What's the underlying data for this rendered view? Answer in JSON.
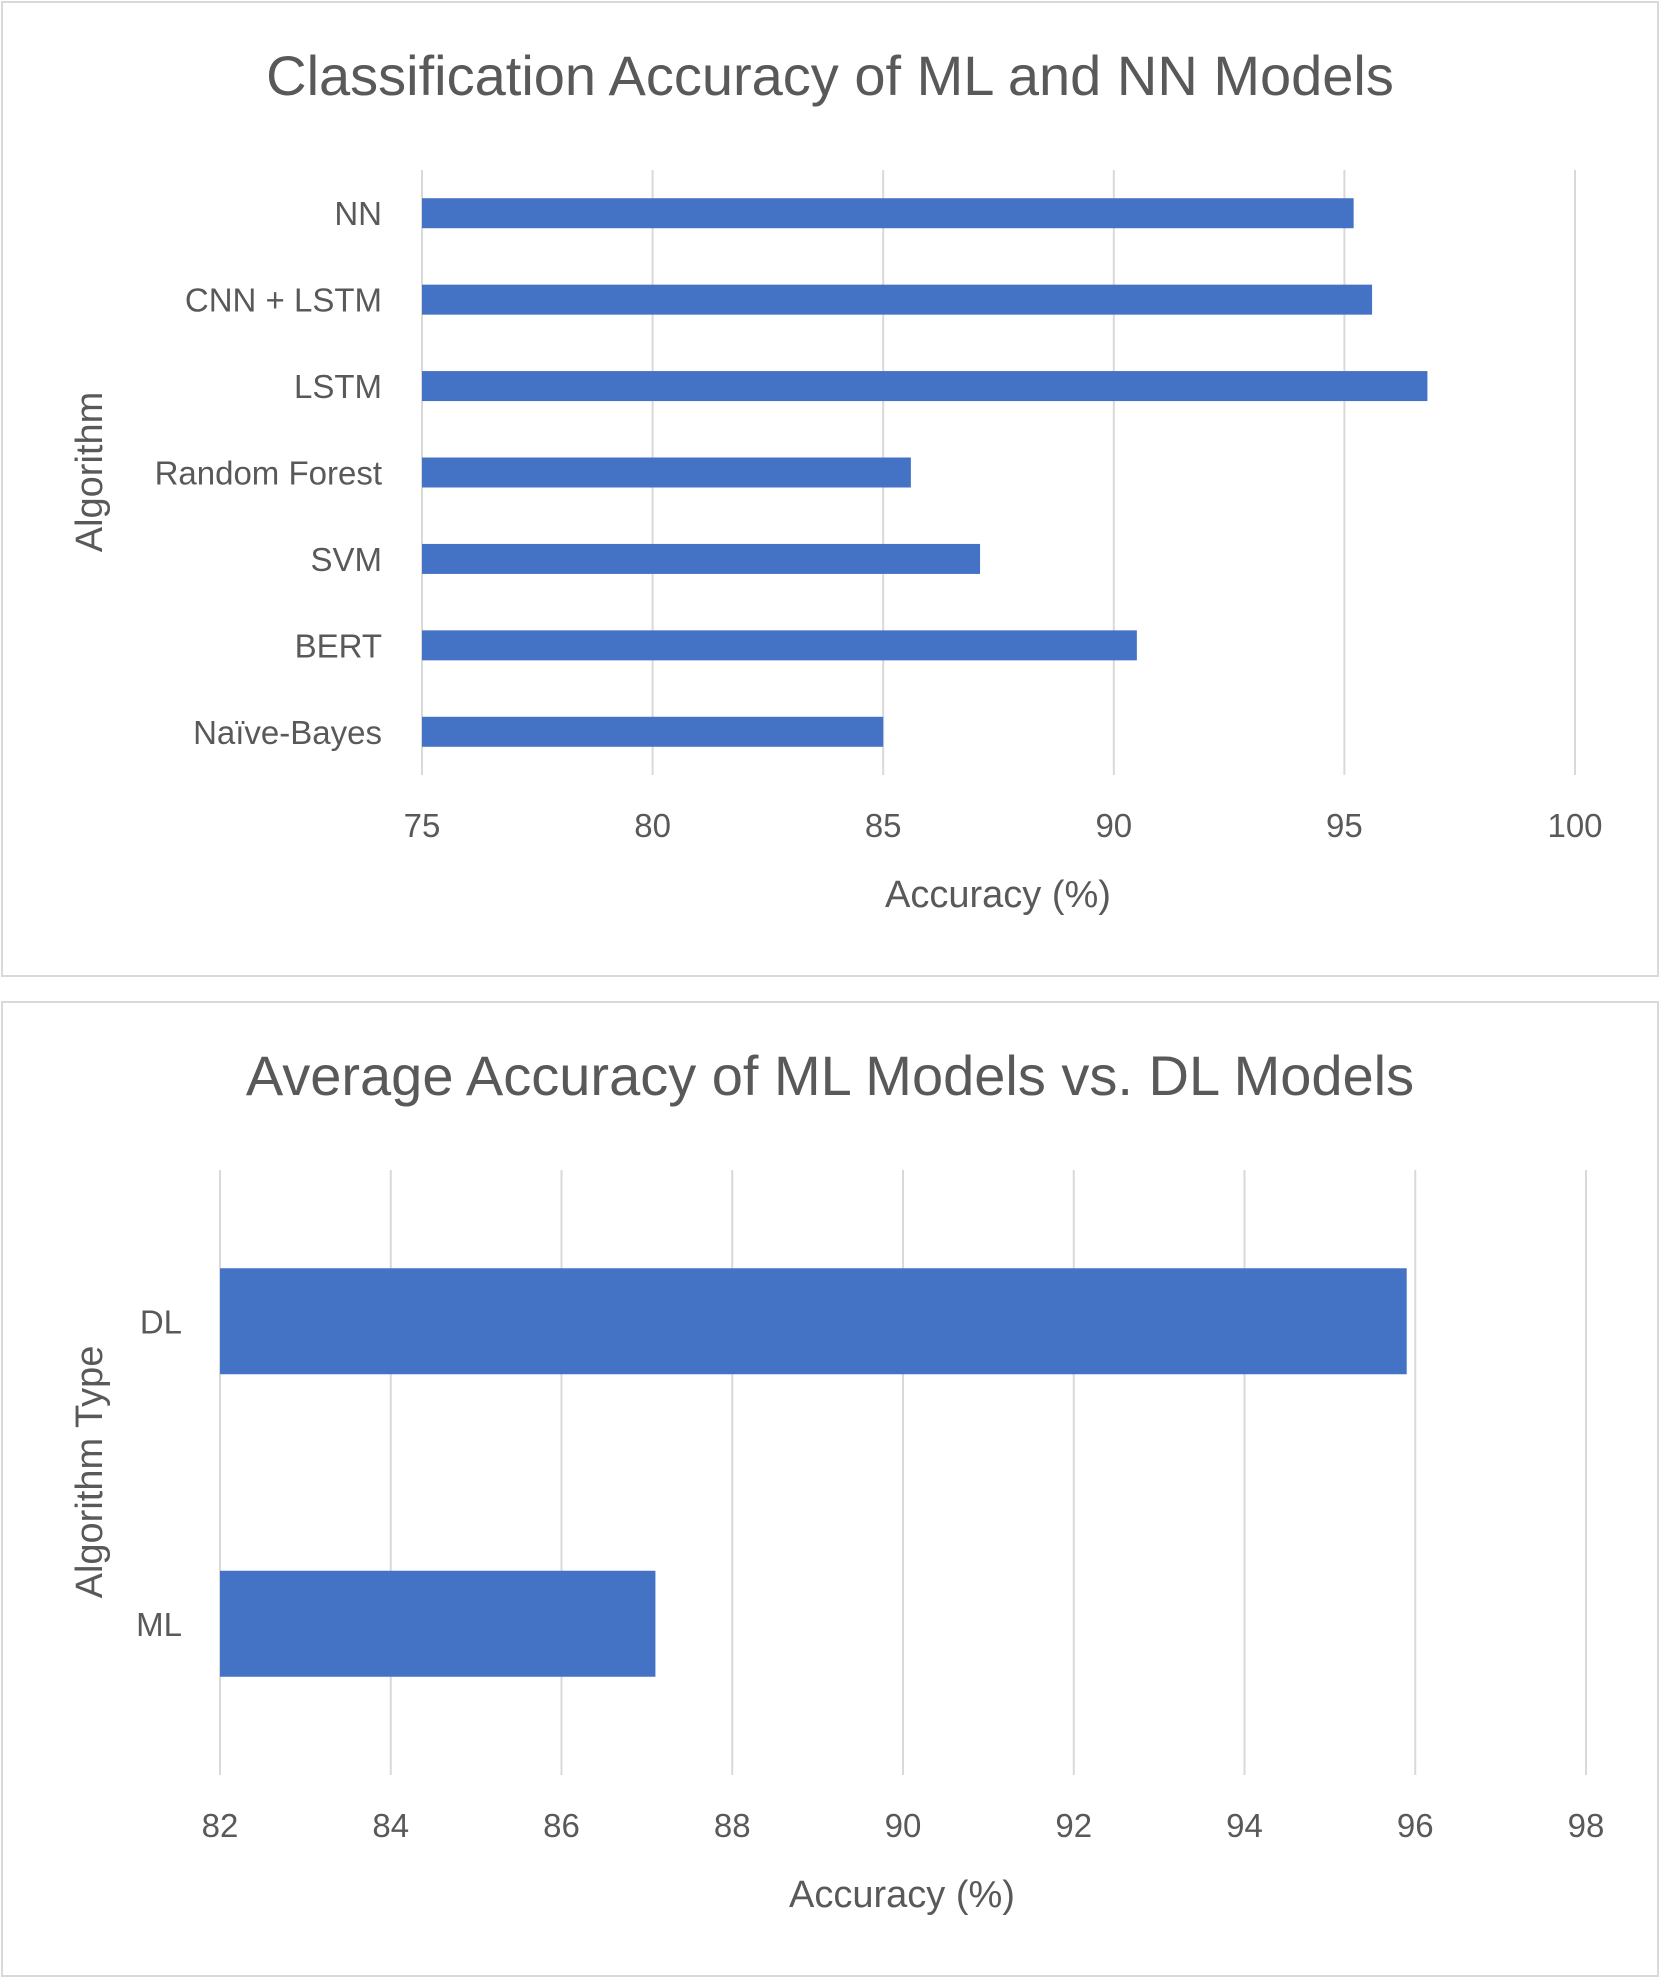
{
  "charts": [
    {
      "type": "bar",
      "orientation": "horizontal",
      "title": "Classification Accuracy of ML and NN Models",
      "xlabel": "Accuracy (%)",
      "ylabel": "Algorithm",
      "categories": [
        "NN",
        "CNN + LSTM",
        "LSTM",
        "Random Forest",
        "SVM",
        "BERT",
        "Naïve-Bayes"
      ],
      "values": [
        95.2,
        95.6,
        96.8,
        85.6,
        87.1,
        90.5,
        85.0
      ],
      "xlim": [
        75,
        100
      ],
      "xticks": [
        "75",
        "80",
        "85",
        "90",
        "95",
        "100"
      ],
      "grid": "vertical",
      "bar_color": "#4472C4"
    },
    {
      "type": "bar",
      "orientation": "horizontal",
      "title": "Average Accuracy of ML Models vs. DL Models",
      "xlabel": "Accuracy (%)",
      "ylabel": "Algorithm Type",
      "categories": [
        "DL",
        "ML"
      ],
      "values": [
        95.9,
        87.1
      ],
      "xlim": [
        82,
        98
      ],
      "xticks": [
        "82",
        "84",
        "86",
        "88",
        "90",
        "92",
        "94",
        "96",
        "98"
      ],
      "grid": "vertical",
      "bar_color": "#4472C4"
    }
  ],
  "chart_data": [
    {
      "type": "bar",
      "title": "Classification Accuracy of ML and NN Models",
      "categories": [
        "NN",
        "CNN + LSTM",
        "LSTM",
        "Random Forest",
        "SVM",
        "BERT",
        "Naïve-Bayes"
      ],
      "values": [
        95.2,
        95.6,
        96.8,
        85.6,
        87.1,
        90.5,
        85.0
      ],
      "xlabel": "Accuracy (%)",
      "ylabel": "Algorithm",
      "xlim": [
        75,
        100
      ]
    },
    {
      "type": "bar",
      "title": "Average Accuracy of ML Models vs. DL Models",
      "categories": [
        "DL",
        "ML"
      ],
      "values": [
        95.9,
        87.1
      ],
      "xlabel": "Accuracy (%)",
      "ylabel": "Algorithm Type",
      "xlim": [
        82,
        98
      ]
    }
  ]
}
